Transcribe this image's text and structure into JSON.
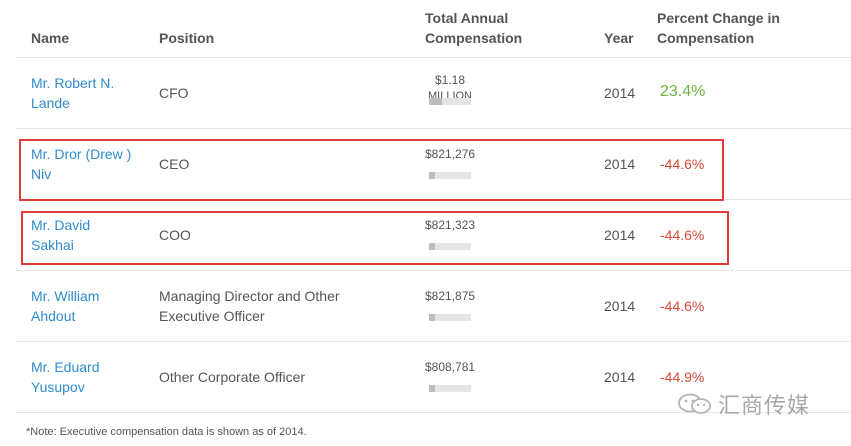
{
  "header": {
    "name": "Name",
    "position": "Position",
    "comp_line1": "Total Annual",
    "comp_line2": "Compensation",
    "year": "Year",
    "pct_line1": "Percent Change in",
    "pct_line2": "Compensation"
  },
  "rows": [
    {
      "name1": "Mr. Robert N.",
      "name2": "Lande",
      "position1": "CFO",
      "position2": "",
      "comp1": "$1.18",
      "comp2": "MILLION",
      "bar": 0.3,
      "year": "2014",
      "pct": "23.4%"
    },
    {
      "name1": "Mr. Dror (Drew )",
      "name2": "Niv",
      "position1": "CEO",
      "position2": "",
      "comp1": "$821,276",
      "comp2": "",
      "bar": 0.15,
      "year": "2014",
      "pct": "-44.6%"
    },
    {
      "name1": "Mr. David",
      "name2": "Sakhai",
      "position1": "COO",
      "position2": "",
      "comp1": "$821,323",
      "comp2": "",
      "bar": 0.15,
      "year": "2014",
      "pct": "-44.6%"
    },
    {
      "name1": "Mr. William",
      "name2": "Ahdout",
      "position1": "Managing Director and Other",
      "position2": "Executive Officer",
      "comp1": "$821,875",
      "comp2": "",
      "bar": 0.15,
      "year": "2014",
      "pct": "-44.6%"
    },
    {
      "name1": "Mr. Eduard",
      "name2": "Yusupov",
      "position1": "Other Corporate Officer",
      "position2": "",
      "comp1": "$808,781",
      "comp2": "",
      "bar": 0.15,
      "year": "2014",
      "pct": "-44.9%"
    }
  ],
  "note": "*Note: Executive compensation data is shown as of 2014.",
  "watermark": "汇商传媒",
  "colors": {
    "link": "#2f8ccd",
    "positive": "#6cb23c",
    "negative": "#d64a36",
    "highlight": "#e23b3b"
  }
}
